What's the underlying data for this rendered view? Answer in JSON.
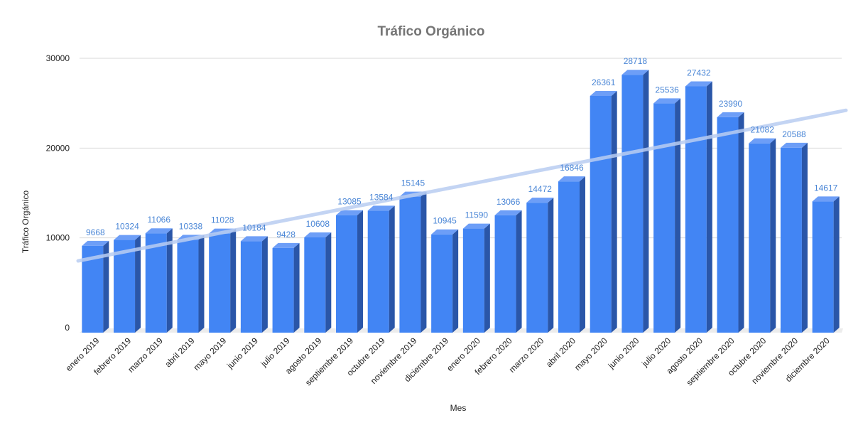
{
  "chart_data": {
    "type": "bar",
    "title": "Tráfico Orgánico",
    "xlabel": "Mes",
    "ylabel": "Tráfico Orgánico",
    "ylim": [
      0,
      30000
    ],
    "yticks": [
      0,
      10000,
      20000,
      30000
    ],
    "grid": true,
    "style": "3d",
    "trendline": true,
    "colors": {
      "bar_front": "#4285f4",
      "bar_side": "#2a56a8",
      "bar_top": "#6d9ef7",
      "trendline": "#b9cdf2",
      "label": "#4a86d6",
      "grid": "#d9d9d9"
    },
    "categories": [
      "enero 2019",
      "febrero 2019",
      "marzo 2019",
      "abril 2019",
      "mayo 2019",
      "junio 2019",
      "julio 2019",
      "agosto 2019",
      "septiembre 2019",
      "octubre 2019",
      "noviembre 2019",
      "diciembre 2019",
      "enero 2020",
      "febrero 2020",
      "marzo 2020",
      "abril 2020",
      "mayo 2020",
      "junio 2020",
      "julio 2020",
      "agosto 2020",
      "septiembre 2020",
      "octubre 2020",
      "noviembre 2020",
      "diciembre 2020"
    ],
    "values": [
      9668,
      10324,
      11066,
      10338,
      11028,
      10184,
      9428,
      10608,
      13085,
      13584,
      15145,
      10945,
      11590,
      13066,
      14472,
      16846,
      26361,
      28718,
      25536,
      27432,
      23990,
      21082,
      20588,
      14617
    ]
  }
}
